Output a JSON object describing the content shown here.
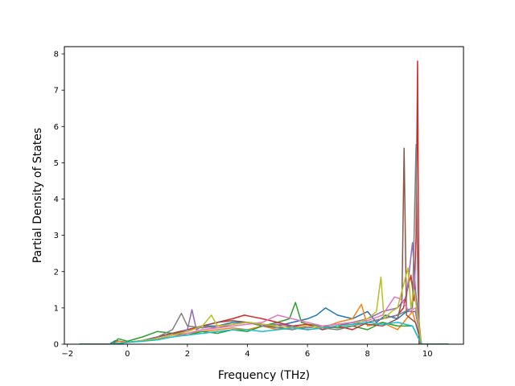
{
  "chart_data": {
    "type": "line",
    "title": "",
    "xlabel": "Frequency (THz)",
    "ylabel": "Partial Density of States",
    "xlim": [
      -2.1,
      11.2
    ],
    "ylim": [
      0,
      8.2
    ],
    "xticks": [
      -2,
      0,
      2,
      4,
      6,
      8,
      10
    ],
    "yticks": [
      0,
      1,
      2,
      3,
      4,
      5,
      6,
      7,
      8
    ],
    "grid": false,
    "legend": "none",
    "colors": [
      "#1f77b4",
      "#ff7f0e",
      "#2ca02c",
      "#d62728",
      "#9467bd",
      "#8c564b",
      "#e377c2",
      "#7f7f7f",
      "#bcbd22",
      "#17becf"
    ],
    "series": [
      {
        "color": "#1f77b4",
        "x": [
          -1.6,
          -0.6,
          -0.4,
          0,
          0.5,
          1,
          1.5,
          2,
          2.5,
          3,
          3.5,
          4,
          4.5,
          5,
          5.5,
          6,
          6.3,
          6.6,
          7,
          7.5,
          8,
          8.3,
          8.6,
          9,
          9.3,
          9.6,
          9.8,
          10.7
        ],
        "y": [
          0,
          0,
          0.1,
          0.05,
          0.1,
          0.2,
          0.3,
          0.4,
          0.5,
          0.5,
          0.6,
          0.6,
          0.55,
          0.5,
          0.6,
          0.7,
          0.8,
          1.0,
          0.8,
          0.7,
          0.9,
          0.6,
          0.8,
          0.7,
          0.9,
          0.9,
          0,
          0
        ]
      },
      {
        "color": "#ff7f0e",
        "x": [
          -1.6,
          -0.5,
          -0.3,
          0,
          0.5,
          1,
          1.5,
          2,
          2.5,
          3,
          3.5,
          4,
          4.5,
          5,
          5.5,
          6,
          6.5,
          7,
          7.5,
          7.8,
          8,
          8.5,
          9,
          9.5,
          9.8,
          10.7
        ],
        "y": [
          0,
          0,
          0.08,
          0.05,
          0.1,
          0.15,
          0.25,
          0.3,
          0.35,
          0.4,
          0.45,
          0.4,
          0.5,
          0.4,
          0.45,
          0.5,
          0.45,
          0.6,
          0.7,
          1.1,
          0.5,
          0.6,
          0.4,
          0.9,
          0,
          0
        ]
      },
      {
        "color": "#2ca02c",
        "x": [
          -1.6,
          -0.5,
          -0.3,
          0,
          0.5,
          1,
          1.5,
          2,
          2.5,
          3,
          3.5,
          4,
          4.5,
          5,
          5.4,
          5.6,
          5.8,
          6,
          6.5,
          7,
          7.5,
          8,
          8.5,
          9,
          9.5,
          9.8,
          10.7
        ],
        "y": [
          0,
          0,
          0.15,
          0.08,
          0.2,
          0.35,
          0.3,
          0.25,
          0.35,
          0.3,
          0.4,
          0.35,
          0.5,
          0.6,
          0.7,
          1.15,
          0.6,
          0.55,
          0.5,
          0.45,
          0.5,
          0.4,
          0.6,
          0.5,
          0.5,
          0,
          0
        ]
      },
      {
        "color": "#d62728",
        "x": [
          -1.6,
          -0.5,
          0,
          0.5,
          1,
          1.5,
          2,
          2.5,
          3,
          3.5,
          3.9,
          4.2,
          4.5,
          5,
          5.5,
          6,
          6.5,
          7,
          7.5,
          8,
          8.5,
          9,
          9.2,
          9.3,
          9.45,
          9.55,
          9.62,
          9.67,
          9.72,
          10.7
        ],
        "y": [
          0,
          0,
          0.05,
          0.1,
          0.2,
          0.3,
          0.4,
          0.5,
          0.6,
          0.7,
          0.8,
          0.75,
          0.7,
          0.6,
          0.5,
          0.55,
          0.4,
          0.5,
          0.4,
          0.6,
          0.7,
          0.8,
          1.0,
          1.4,
          1.9,
          1.2,
          3.0,
          7.8,
          0,
          0
        ]
      },
      {
        "color": "#9467bd",
        "x": [
          -1.6,
          -0.5,
          0,
          0.5,
          1,
          1.5,
          2,
          2.15,
          2.3,
          2.5,
          3,
          3.5,
          4,
          4.5,
          5,
          5.5,
          6,
          6.5,
          7,
          7.5,
          8,
          8.5,
          9,
          9.3,
          9.5,
          9.6,
          9.8,
          10.7
        ],
        "y": [
          0,
          0,
          0.05,
          0.1,
          0.15,
          0.25,
          0.4,
          0.95,
          0.4,
          0.5,
          0.45,
          0.55,
          0.6,
          0.5,
          0.55,
          0.5,
          0.45,
          0.5,
          0.55,
          0.6,
          0.7,
          0.9,
          1.0,
          1.3,
          2.8,
          1.5,
          0,
          0
        ]
      },
      {
        "color": "#8c564b",
        "x": [
          -1.6,
          -0.5,
          0,
          0.5,
          1,
          1.5,
          2,
          2.5,
          3,
          3.5,
          4,
          4.5,
          5,
          5.5,
          6,
          6.5,
          7,
          7.5,
          8,
          8.5,
          9,
          9.15,
          9.22,
          9.3,
          9.6,
          9.8,
          10.7
        ],
        "y": [
          0,
          0,
          0.05,
          0.1,
          0.2,
          0.3,
          0.35,
          0.5,
          0.6,
          0.65,
          0.6,
          0.55,
          0.45,
          0.5,
          0.4,
          0.45,
          0.5,
          0.6,
          0.55,
          0.5,
          0.7,
          1.2,
          5.4,
          0.8,
          0.6,
          0,
          0
        ]
      },
      {
        "color": "#e377c2",
        "x": [
          -1.6,
          -0.5,
          0,
          0.5,
          1,
          1.5,
          2,
          2.5,
          3,
          3.5,
          4,
          4.5,
          5,
          5.5,
          6,
          6.5,
          7,
          7.5,
          8,
          8.5,
          8.9,
          9.1,
          9.4,
          9.6,
          9.8,
          10.7
        ],
        "y": [
          0,
          0,
          0.05,
          0.1,
          0.15,
          0.2,
          0.3,
          0.4,
          0.45,
          0.5,
          0.55,
          0.6,
          0.8,
          0.7,
          0.6,
          0.5,
          0.55,
          0.6,
          0.65,
          0.8,
          1.3,
          1.25,
          0.9,
          1.0,
          0,
          0
        ]
      },
      {
        "color": "#7f7f7f",
        "x": [
          -1.6,
          -0.5,
          0,
          0.5,
          1,
          1.5,
          1.8,
          2,
          2.5,
          3,
          3.5,
          4,
          4.5,
          5,
          5.5,
          6,
          6.5,
          7,
          7.5,
          8,
          8.5,
          9,
          9.5,
          9.62,
          9.68,
          9.75,
          10.7
        ],
        "y": [
          0,
          0,
          0.05,
          0.1,
          0.2,
          0.4,
          0.85,
          0.5,
          0.45,
          0.5,
          0.55,
          0.6,
          0.5,
          0.45,
          0.4,
          0.5,
          0.45,
          0.4,
          0.5,
          0.6,
          0.7,
          0.8,
          1.0,
          5.5,
          1.5,
          0,
          0
        ]
      },
      {
        "color": "#bcbd22",
        "x": [
          -1.6,
          -0.5,
          0,
          0.5,
          1,
          1.5,
          2,
          2.5,
          2.8,
          3,
          3.5,
          4,
          4.5,
          5,
          5.5,
          6,
          6.5,
          7,
          7.5,
          8,
          8.3,
          8.45,
          8.55,
          8.8,
          9,
          9.35,
          9.45,
          9.55,
          9.8,
          10.7
        ],
        "y": [
          0,
          0,
          0.05,
          0.1,
          0.15,
          0.25,
          0.35,
          0.5,
          0.8,
          0.5,
          0.55,
          0.6,
          0.55,
          0.5,
          0.45,
          0.5,
          0.45,
          0.5,
          0.55,
          0.7,
          0.9,
          1.85,
          0.7,
          0.9,
          1.0,
          2.1,
          1.0,
          1.5,
          0,
          0
        ]
      },
      {
        "color": "#17becf",
        "x": [
          -1.6,
          -0.5,
          0,
          0.5,
          1,
          1.5,
          2,
          2.5,
          3,
          3.5,
          4,
          4.5,
          5,
          5.5,
          6,
          6.5,
          7,
          7.5,
          8,
          8.5,
          9,
          9.5,
          9.8,
          10.7
        ],
        "y": [
          0,
          0,
          0.05,
          0.08,
          0.12,
          0.2,
          0.25,
          0.3,
          0.35,
          0.4,
          0.4,
          0.35,
          0.4,
          0.45,
          0.4,
          0.45,
          0.5,
          0.55,
          0.6,
          0.55,
          0.6,
          0.5,
          0,
          0
        ]
      }
    ]
  }
}
